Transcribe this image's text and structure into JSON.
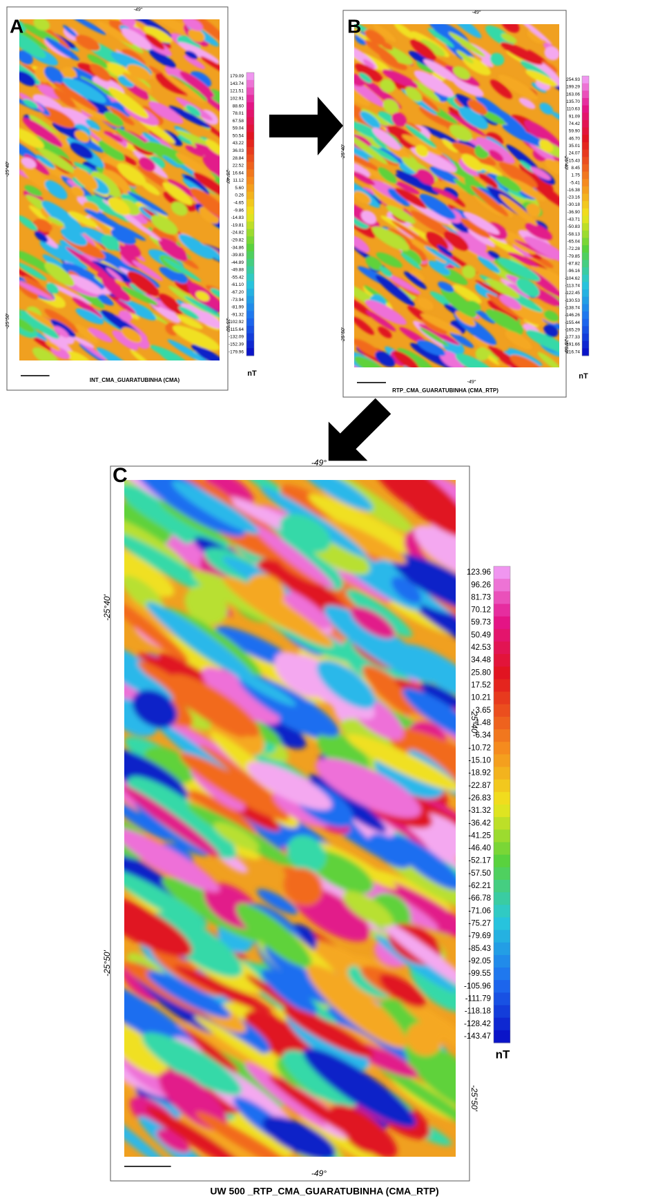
{
  "panels": [
    {
      "letter": "A",
      "title": "INT_CMA_GUARATUBINHA (CMA)",
      "longitude_labels": [
        "-49°"
      ],
      "latitude_labels": [
        "-25°40'",
        "-25°50'"
      ],
      "legend_unit": "nT",
      "legend_labels": [
        "179.09",
        "143.74",
        "121.51",
        "102.91",
        "88.60",
        "78.01",
        "67.58",
        "59.04",
        "50.54",
        "43.22",
        "36.03",
        "28.84",
        "22.52",
        "16.64",
        "11.12",
        "5.60",
        "0.26",
        "-4.65",
        "-9.86",
        "-14.83",
        "-19.81",
        "-24.82",
        "-29.82",
        "-34.86",
        "-39.83",
        "-44.89",
        "-49.88",
        "-55.42",
        "-61.10",
        "-67.20",
        "-73.94",
        "-81.99",
        "-91.32",
        "-102.92",
        "-115.64",
        "-132.09",
        "-152.39",
        "-179.96"
      ]
    },
    {
      "letter": "B",
      "title": "RTP_CMA_GUARATUBINHA (CMA_RTP)",
      "longitude_labels": [
        "-49°",
        "-49°"
      ],
      "latitude_labels": [
        "-25°40'",
        "-25°50'"
      ],
      "legend_unit": "nT",
      "legend_labels": [
        "254.93",
        "199.29",
        "163.06",
        "135.70",
        "110.63",
        "91.09",
        "74.42",
        "59.90",
        "46.70",
        "35.01",
        "24.07",
        "15.43",
        "8.45",
        "1.75",
        "-5.41",
        "-16.38",
        "-23.16",
        "-30.18",
        "-36.90",
        "-43.71",
        "-50.83",
        "-58.13",
        "-65.04",
        "-72.28",
        "-79.85",
        "-87.82",
        "-96.16",
        "-104.62",
        "-113.74",
        "-122.45",
        "-130.53",
        "-138.74",
        "-146.26",
        "-155.44",
        "-165.29",
        "-177.33",
        "-191.66",
        "-216.74"
      ]
    },
    {
      "letter": "C",
      "title": "UW 500 _RTP_CMA_GUARATUBINHA (CMA_RTP)",
      "longitude_labels": [
        "-49°",
        "-49°"
      ],
      "latitude_labels": [
        "-25°40'",
        "-25°50'"
      ],
      "legend_unit": "nT",
      "legend_labels": [
        "123.96",
        "96.26",
        "81.73",
        "70.12",
        "59.73",
        "50.49",
        "42.53",
        "34.48",
        "25.80",
        "17.52",
        "10.21",
        "3.65",
        "-1.48",
        "-6.34",
        "-10.72",
        "-15.10",
        "-18.92",
        "-22.87",
        "-26.83",
        "-31.32",
        "-36.42",
        "-41.25",
        "-46.40",
        "-52.17",
        "-57.50",
        "-62.21",
        "-66.78",
        "-71.06",
        "-75.27",
        "-79.69",
        "-85.43",
        "-92.05",
        "-99.55",
        "-105.96",
        "-111.79",
        "-118.18",
        "-128.42",
        "-143.47"
      ]
    }
  ]
}
